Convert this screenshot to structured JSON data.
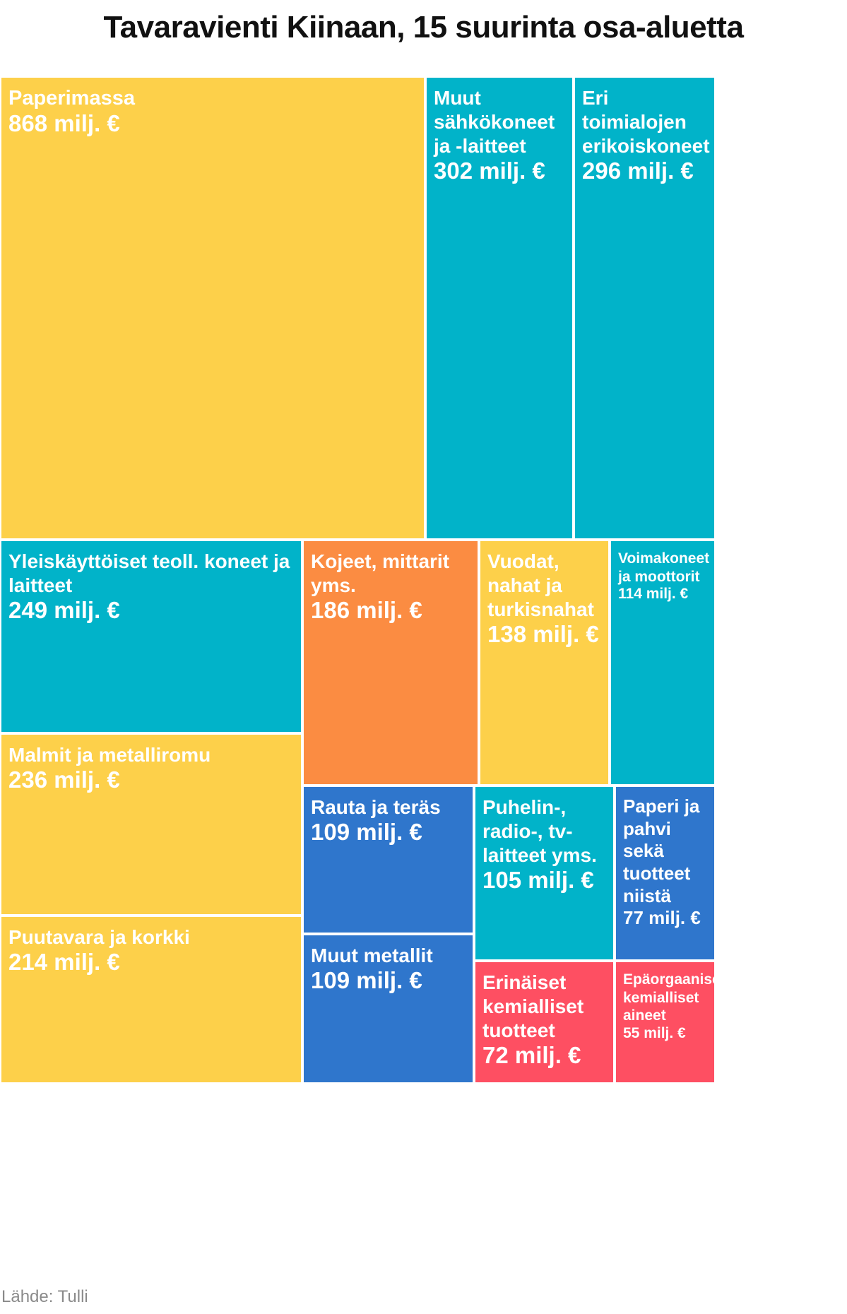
{
  "title": "Tavaravienti Kiinaan, 15 suurinta osa-aluetta",
  "source": "Lähde: Tulli",
  "colors": {
    "yellow": "#fdd04a",
    "teal": "#01b3c9",
    "orange": "#fb8c42",
    "blue": "#2f76cc",
    "red": "#fe4f62"
  },
  "chart_data": {
    "type": "treemap",
    "title": "Tavaravienti Kiinaan, 15 suurinta osa-aluetta",
    "unit": "milj. €",
    "items": [
      {
        "label": "Paperimassa",
        "value": 868,
        "value_text": "868 milj. €",
        "color": "#fdd04a"
      },
      {
        "label": "Muut sähkökoneet ja -laitteet",
        "value": 302,
        "value_text": "302 milj. €",
        "color": "#01b3c9"
      },
      {
        "label": "Eri toimialojen erikoiskoneet",
        "value": 296,
        "value_text": "296 milj. €",
        "color": "#01b3c9"
      },
      {
        "label": "Yleiskäyttöiset teoll. koneet ja laitteet",
        "value": 249,
        "value_text": "249 milj. €",
        "color": "#01b3c9"
      },
      {
        "label": "Malmit ja metalliromu",
        "value": 236,
        "value_text": "236 milj. €",
        "color": "#fdd04a"
      },
      {
        "label": "Puutavara ja korkki",
        "value": 214,
        "value_text": "214 milj. €",
        "color": "#fdd04a"
      },
      {
        "label": "Kojeet, mittarit yms.",
        "value": 186,
        "value_text": "186 milj. €",
        "color": "#fb8c42"
      },
      {
        "label": "Vuodat, nahat ja turkisnahat",
        "value": 138,
        "value_text": "138 milj. €",
        "color": "#fdd04a"
      },
      {
        "label": "Voimakoneet ja moottorit",
        "value": 114,
        "value_text": "114 milj. €",
        "color": "#01b3c9"
      },
      {
        "label": "Rauta ja teräs",
        "value": 109,
        "value_text": "109 milj. €",
        "color": "#2f76cc"
      },
      {
        "label": "Muut metallit",
        "value": 109,
        "value_text": "109 milj. €",
        "color": "#2f76cc"
      },
      {
        "label": "Puhelin-, radio-, tv-laitteet yms.",
        "value": 105,
        "value_text": "105 milj. €",
        "color": "#01b3c9"
      },
      {
        "label": "Paperi ja pahvi sekä tuotteet niistä",
        "value": 77,
        "value_text": "77 milj. €",
        "color": "#2f76cc"
      },
      {
        "label": "Erinäiset kemialliset tuotteet",
        "value": 72,
        "value_text": "72 milj. €",
        "color": "#fe4f62"
      },
      {
        "label": "Epäorgaaniset kemialliset aineet",
        "value": 55,
        "value_text": "55 milj. €",
        "color": "#fe4f62"
      }
    ]
  }
}
